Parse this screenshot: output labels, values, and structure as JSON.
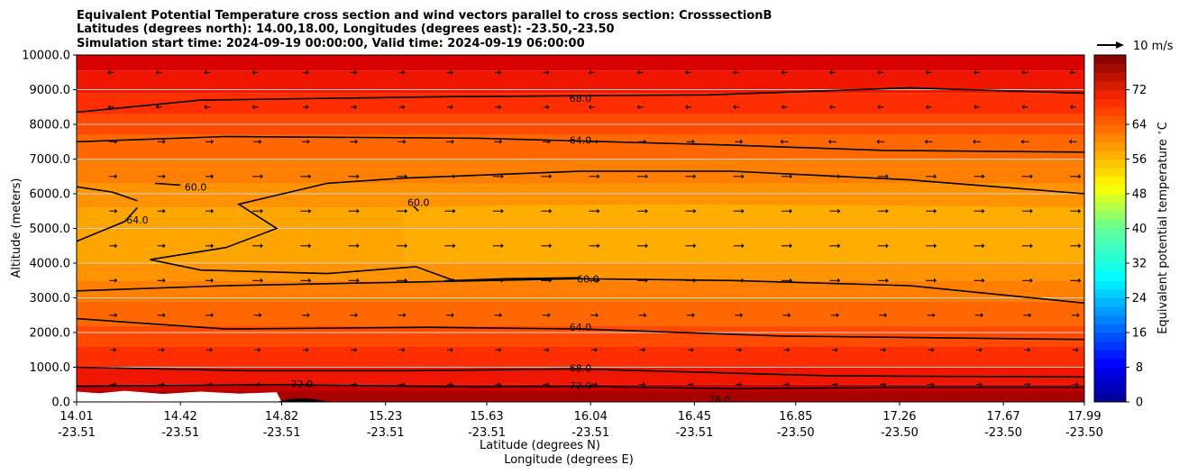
{
  "chart_data": {
    "type": "heatmap",
    "title_lines": [
      "Equivalent Potential Temperature cross section and wind vectors parallel to cross section: CrosssectionB",
      "Latitudes (degrees north): 14.00,18.00, Longitudes (degrees east): -23.50,-23.50",
      "Simulation start time: 2024-09-19 00:00:00, Valid time: 2024-09-19 06:00:00"
    ],
    "xlabel_primary": "Latitude (degrees N)",
    "xlabel_secondary": "Longitude (degrees E)",
    "ylabel": "Altitude (meters)",
    "ylim": [
      0,
      10000
    ],
    "xlim": [
      14.01,
      17.99
    ],
    "x_ticks": [
      {
        "lat": "14.01",
        "lon": "-23.51",
        "value": 14.01
      },
      {
        "lat": "14.42",
        "lon": "-23.51",
        "value": 14.42
      },
      {
        "lat": "14.82",
        "lon": "-23.51",
        "value": 14.82
      },
      {
        "lat": "15.23",
        "lon": "-23.51",
        "value": 15.23
      },
      {
        "lat": "15.63",
        "lon": "-23.51",
        "value": 15.63
      },
      {
        "lat": "16.04",
        "lon": "-23.51",
        "value": 16.04
      },
      {
        "lat": "16.45",
        "lon": "-23.51",
        "value": 16.45
      },
      {
        "lat": "16.85",
        "lon": "-23.50",
        "value": 16.85
      },
      {
        "lat": "17.26",
        "lon": "-23.50",
        "value": 17.26
      },
      {
        "lat": "17.67",
        "lon": "-23.50",
        "value": 17.67
      },
      {
        "lat": "17.99",
        "lon": "-23.50",
        "value": 17.99
      }
    ],
    "y_ticks": [
      {
        "label": "0.0",
        "value": 0
      },
      {
        "label": "1000.0",
        "value": 1000
      },
      {
        "label": "2000.0",
        "value": 2000
      },
      {
        "label": "3000.0",
        "value": 3000
      },
      {
        "label": "4000.0",
        "value": 4000
      },
      {
        "label": "5000.0",
        "value": 5000
      },
      {
        "label": "6000.0",
        "value": 6000
      },
      {
        "label": "7000.0",
        "value": 7000
      },
      {
        "label": "8000.0",
        "value": 8000
      },
      {
        "label": "9000.0",
        "value": 9000
      },
      {
        "label": "10000.0",
        "value": 10000
      }
    ],
    "grid": "horizontal",
    "contour_labels": [
      {
        "text": "68.0",
        "x": 16.0,
        "y": 8750
      },
      {
        "text": "64.0",
        "x": 16.0,
        "y": 7550
      },
      {
        "text": "60.0",
        "x": 16.03,
        "y": 3540
      },
      {
        "text": "64.0",
        "x": 16.0,
        "y": 2150
      },
      {
        "text": "68.0",
        "x": 16.0,
        "y": 980
      },
      {
        "text": "72.0",
        "x": 14.9,
        "y": 520
      },
      {
        "text": "72.0",
        "x": 16.0,
        "y": 470
      },
      {
        "text": "76.0",
        "x": 16.55,
        "y": 70
      },
      {
        "text": "60.0",
        "x": 14.48,
        "y": 6200
      },
      {
        "text": "64.0",
        "x": 14.25,
        "y": 5250
      },
      {
        "text": "60.0",
        "x": 15.36,
        "y": 5750
      }
    ],
    "colorbar": {
      "label": "Equivalent potential temperature $^\\circ$C",
      "min": 0,
      "max": 80,
      "ticks": [
        {
          "label": "0",
          "value": 0
        },
        {
          "label": "8",
          "value": 8
        },
        {
          "label": "16",
          "value": 16
        },
        {
          "label": "24",
          "value": 24
        },
        {
          "label": "32",
          "value": 32
        },
        {
          "label": "40",
          "value": 40
        },
        {
          "label": "48",
          "value": 48
        },
        {
          "label": "56",
          "value": 56
        },
        {
          "label": "64",
          "value": 64
        },
        {
          "label": "72",
          "value": 72
        }
      ]
    },
    "quiver_key": "10 m/s"
  }
}
